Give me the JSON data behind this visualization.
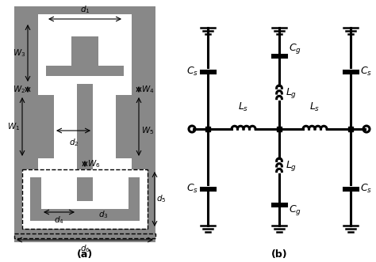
{
  "fig_width": 4.74,
  "fig_height": 3.31,
  "dpi": 100,
  "bg_color": "#ffffff",
  "gray": "#888888",
  "white": "#ffffff",
  "black": "#000000",
  "lw": 1.5,
  "lw_thick": 2.2
}
